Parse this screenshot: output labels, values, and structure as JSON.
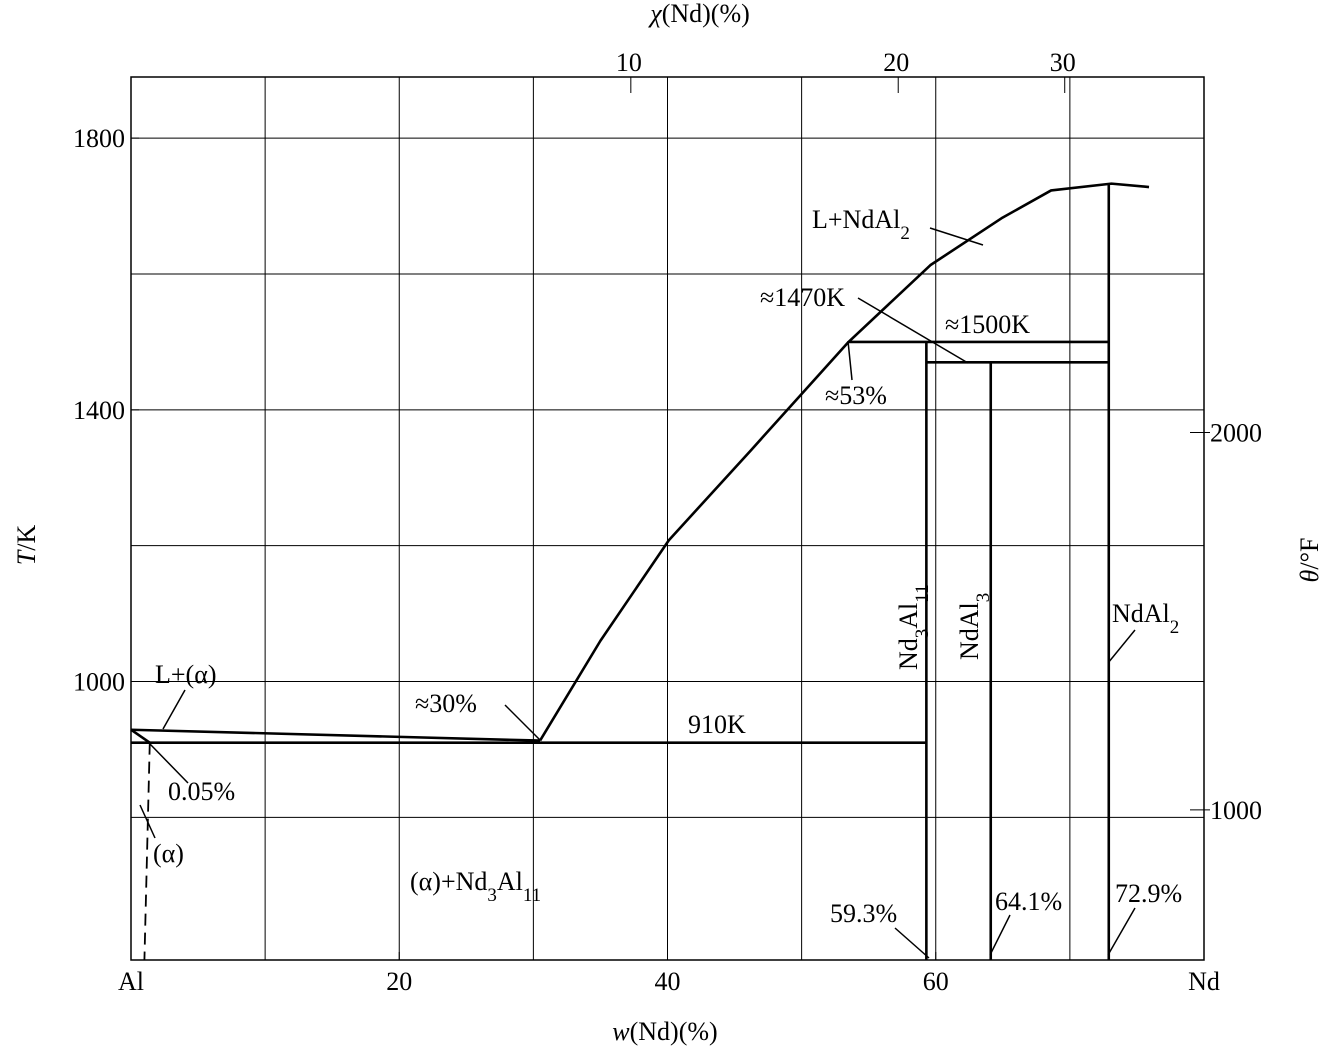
{
  "chart_data": {
    "type": "phase-diagram",
    "x_label": {
      "parts": [
        {
          "text": "w",
          "italic": true
        },
        {
          "text": "(Nd)(%)"
        }
      ]
    },
    "x2_label": {
      "parts": [
        {
          "text": "χ",
          "italic": true
        },
        {
          "text": "(Nd)(%)"
        }
      ]
    },
    "y_label": {
      "parts": [
        {
          "text": "T",
          "italic": true
        },
        {
          "text": "/K"
        }
      ]
    },
    "y2_label": {
      "parts": [
        {
          "text": "θ",
          "italic": true
        },
        {
          "text": "/°F"
        }
      ]
    },
    "xlim": [
      0,
      80
    ],
    "xticks": [
      {
        "value": 0,
        "label": "Al"
      },
      20,
      40,
      60,
      {
        "value": 80,
        "label": "Nd"
      }
    ],
    "x2ticks": [
      10,
      20,
      30
    ],
    "ylim": [
      590,
      1890
    ],
    "yticks": [
      1000,
      1400,
      1800
    ],
    "y2lim": [
      602,
      2942
    ],
    "y2ticks": [
      1000,
      2000
    ],
    "grid": true,
    "xgrid": [
      10,
      20,
      30,
      40,
      50,
      60,
      70
    ],
    "ygrid": [
      800,
      1000,
      1200,
      1400,
      1600,
      1800
    ],
    "lines": [
      {
        "style": "solid",
        "x": [
          0,
          30.5
        ],
        "y": [
          929,
          913
        ]
      },
      {
        "style": "solid",
        "x": [
          30.5,
          35.0,
          40.1,
          46.2,
          53.5,
          59.6,
          64.9,
          68.6,
          73.1,
          75.9
        ],
        "y": [
          913,
          1060,
          1208,
          1340,
          1500,
          1613,
          1682,
          1723,
          1733,
          1728
        ]
      },
      {
        "style": "solid",
        "x": [
          0,
          59.3
        ],
        "y": [
          910,
          910
        ]
      },
      {
        "style": "solid",
        "x": [
          0,
          1.4
        ],
        "y": [
          929,
          910
        ]
      },
      {
        "style": "dashed",
        "x": [
          1.4,
          1.0
        ],
        "y": [
          910,
          590
        ]
      },
      {
        "style": "solid",
        "x": [
          59.3,
          59.3
        ],
        "y": [
          590,
          1500
        ]
      },
      {
        "style": "solid",
        "x": [
          64.1,
          64.1
        ],
        "y": [
          590,
          1470
        ]
      },
      {
        "style": "solid",
        "x": [
          72.9,
          72.9
        ],
        "y": [
          590,
          1733
        ]
      },
      {
        "style": "solid",
        "x": [
          53.5,
          72.9
        ],
        "y": [
          1500,
          1500
        ]
      },
      {
        "style": "solid",
        "x": [
          59.3,
          72.9
        ],
        "y": [
          1470,
          1470
        ]
      }
    ],
    "annotations": [
      {
        "parts": [
          {
            "text": "L+NdAl"
          },
          {
            "text": "2",
            "sub": true
          }
        ]
      },
      {
        "parts": [
          {
            "text": "≈1470K"
          }
        ]
      },
      {
        "parts": [
          {
            "text": "≈1500K"
          }
        ]
      },
      {
        "parts": [
          {
            "text": "≈53%"
          }
        ]
      },
      {
        "parts": [
          {
            "text": "L+(α)"
          }
        ]
      },
      {
        "parts": [
          {
            "text": "≈30%"
          }
        ]
      },
      {
        "parts": [
          {
            "text": "910K"
          }
        ]
      },
      {
        "parts": [
          {
            "text": "0.05%"
          }
        ]
      },
      {
        "parts": [
          {
            "text": "(α)"
          }
        ]
      },
      {
        "parts": [
          {
            "text": "(α)+Nd"
          },
          {
            "text": "3",
            "sub": true
          },
          {
            "text": "Al"
          },
          {
            "text": "11",
            "sub": true
          }
        ]
      },
      {
        "parts": [
          {
            "text": "Nd"
          },
          {
            "text": "3",
            "sub": true
          },
          {
            "text": "Al"
          },
          {
            "text": "11",
            "sub": true
          }
        ]
      },
      {
        "parts": [
          {
            "text": "NdAl"
          },
          {
            "text": "3",
            "sub": true
          }
        ]
      },
      {
        "parts": [
          {
            "text": "NdAl"
          },
          {
            "text": "2",
            "sub": true
          }
        ]
      },
      {
        "parts": [
          {
            "text": "59.3%"
          }
        ]
      },
      {
        "parts": [
          {
            "text": "64.1%"
          }
        ]
      },
      {
        "parts": [
          {
            "text": "72.9%"
          }
        ]
      }
    ]
  }
}
